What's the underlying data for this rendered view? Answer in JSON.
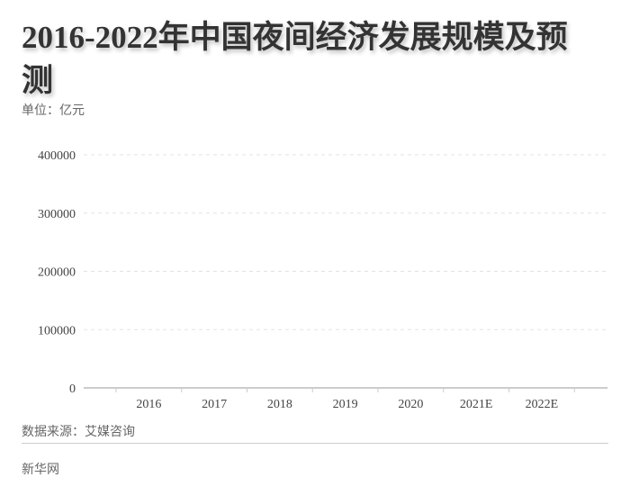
{
  "title": "2016-2022年中国夜间经济发展规模及预测",
  "unit_label": "单位：亿元",
  "source": "数据来源：艾媒咨询",
  "footer": "新华网",
  "chart_data": {
    "type": "bar",
    "title": "2016-2022年中国夜间经济发展规模及预测",
    "ylabel": "单位：亿元",
    "categories": [
      "2016",
      "2017",
      "2018",
      "2019",
      "2020",
      "2021E",
      "2022E"
    ],
    "values": [
      null,
      null,
      null,
      null,
      null,
      null,
      null
    ],
    "yticks": [
      0,
      100000,
      200000,
      300000,
      400000
    ],
    "ylim": [
      0,
      400000
    ],
    "grid": true
  }
}
